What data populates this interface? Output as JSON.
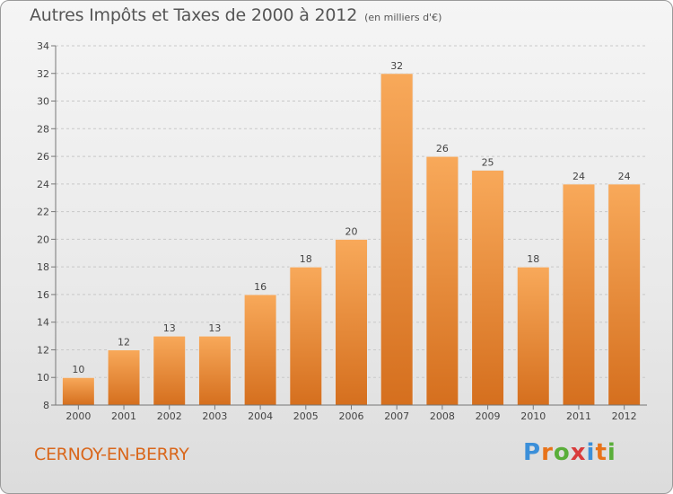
{
  "title": "Autres Impôts et Taxes de 2000 à 2012",
  "title_unit": "(en milliers d'€)",
  "town": "CERNOY-EN-BERRY",
  "logo": {
    "letters": [
      "P",
      "r",
      "o",
      "x",
      "i",
      "t",
      "i"
    ],
    "colors": [
      "#3b8fd9",
      "#e8731a",
      "#5aae3a",
      "#d93b3b",
      "#3b8fd9",
      "#e8731a",
      "#5aae3a"
    ]
  },
  "colors": {
    "bar_top": "#f8a95a",
    "bar_bottom": "#d56f1e",
    "axis": "#777777",
    "grid": "#c8c8c8",
    "town": "#d9671c"
  },
  "chart_data": {
    "type": "bar",
    "categories": [
      "2000",
      "2001",
      "2002",
      "2003",
      "2004",
      "2005",
      "2006",
      "2007",
      "2008",
      "2009",
      "2010",
      "2011",
      "2012"
    ],
    "values": [
      10,
      12,
      13,
      13,
      16,
      18,
      20,
      32,
      26,
      25,
      18,
      24,
      24
    ],
    "data_labels": [
      "10",
      "12",
      "13",
      "13",
      "16",
      "18",
      "20",
      "32",
      "26",
      "25",
      "18",
      "24",
      "24"
    ],
    "ylim": [
      8,
      34
    ],
    "yticks": [
      8,
      10,
      12,
      14,
      16,
      18,
      20,
      22,
      24,
      26,
      28,
      30,
      32,
      34
    ],
    "grid": "horizontal"
  }
}
